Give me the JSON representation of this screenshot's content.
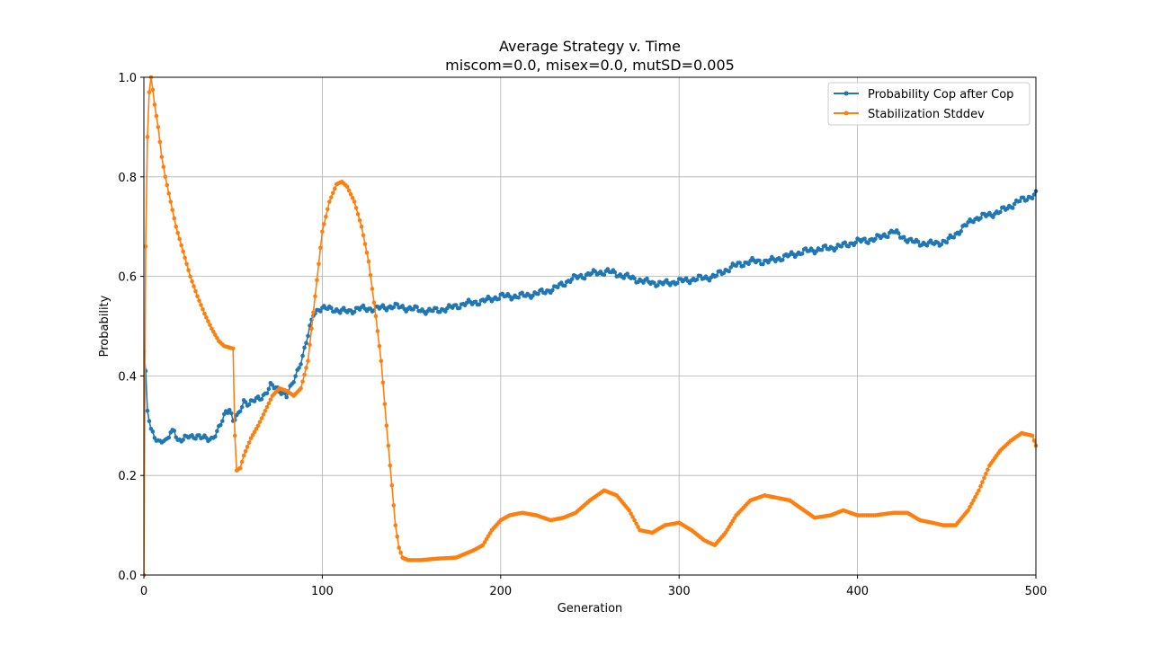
{
  "chart_data": {
    "type": "line",
    "title": "Average Strategy v. Time",
    "subtitle": "miscom=0.0, misex=0.0, mutSD=0.005",
    "xlabel": "Generation",
    "ylabel": "Probability",
    "xlim": [
      0,
      500
    ],
    "ylim": [
      0.0,
      1.0
    ],
    "xticks": [
      0,
      100,
      200,
      300,
      400,
      500
    ],
    "xtick_labels": [
      "0",
      "100",
      "200",
      "300",
      "400",
      "500"
    ],
    "yticks": [
      0.0,
      0.2,
      0.4,
      0.6,
      0.8,
      1.0
    ],
    "ytick_labels": [
      "0.0",
      "0.2",
      "0.4",
      "0.6",
      "0.8",
      "1.0"
    ],
    "grid": true,
    "legend_position": "top-right",
    "series": [
      {
        "name": "Probability Cop after Cop",
        "color": "#1f77b4",
        "marker": "circle",
        "knots": [
          [
            0,
            0.45
          ],
          [
            1,
            0.41
          ],
          [
            2,
            0.33
          ],
          [
            4,
            0.29
          ],
          [
            6,
            0.28
          ],
          [
            8,
            0.27
          ],
          [
            10,
            0.27
          ],
          [
            12,
            0.265
          ],
          [
            15,
            0.285
          ],
          [
            17,
            0.295
          ],
          [
            19,
            0.27
          ],
          [
            22,
            0.27
          ],
          [
            25,
            0.28
          ],
          [
            28,
            0.28
          ],
          [
            32,
            0.275
          ],
          [
            35,
            0.275
          ],
          [
            38,
            0.275
          ],
          [
            41,
            0.285
          ],
          [
            44,
            0.31
          ],
          [
            46,
            0.33
          ],
          [
            48,
            0.335
          ],
          [
            50,
            0.31
          ],
          [
            53,
            0.32
          ],
          [
            56,
            0.35
          ],
          [
            59,
            0.345
          ],
          [
            62,
            0.35
          ],
          [
            65,
            0.355
          ],
          [
            68,
            0.365
          ],
          [
            71,
            0.38
          ],
          [
            74,
            0.375
          ],
          [
            77,
            0.37
          ],
          [
            80,
            0.36
          ],
          [
            83,
            0.38
          ],
          [
            86,
            0.41
          ],
          [
            89,
            0.44
          ],
          [
            92,
            0.48
          ],
          [
            95,
            0.525
          ],
          [
            98,
            0.535
          ],
          [
            102,
            0.535
          ],
          [
            106,
            0.535
          ],
          [
            110,
            0.53
          ],
          [
            115,
            0.53
          ],
          [
            120,
            0.535
          ],
          [
            130,
            0.535
          ],
          [
            140,
            0.54
          ],
          [
            150,
            0.535
          ],
          [
            160,
            0.53
          ],
          [
            170,
            0.535
          ],
          [
            180,
            0.545
          ],
          [
            190,
            0.55
          ],
          [
            200,
            0.56
          ],
          [
            210,
            0.56
          ],
          [
            220,
            0.565
          ],
          [
            230,
            0.575
          ],
          [
            240,
            0.595
          ],
          [
            250,
            0.605
          ],
          [
            260,
            0.61
          ],
          [
            270,
            0.6
          ],
          [
            280,
            0.59
          ],
          [
            290,
            0.585
          ],
          [
            300,
            0.59
          ],
          [
            310,
            0.595
          ],
          [
            320,
            0.6
          ],
          [
            330,
            0.62
          ],
          [
            340,
            0.63
          ],
          [
            350,
            0.63
          ],
          [
            360,
            0.64
          ],
          [
            370,
            0.65
          ],
          [
            380,
            0.655
          ],
          [
            390,
            0.66
          ],
          [
            400,
            0.67
          ],
          [
            410,
            0.675
          ],
          [
            420,
            0.69
          ],
          [
            430,
            0.67
          ],
          [
            440,
            0.665
          ],
          [
            450,
            0.67
          ],
          [
            455,
            0.685
          ],
          [
            460,
            0.7
          ],
          [
            465,
            0.715
          ],
          [
            470,
            0.72
          ],
          [
            480,
            0.73
          ],
          [
            490,
            0.75
          ],
          [
            500,
            0.765
          ]
        ]
      },
      {
        "name": "Stabilization Stddev",
        "color": "#ff7f0e",
        "marker": "circle",
        "knots": [
          [
            0,
            0.0
          ],
          [
            1,
            0.66
          ],
          [
            2,
            0.88
          ],
          [
            3,
            0.97
          ],
          [
            4,
            1.0
          ],
          [
            5,
            0.975
          ],
          [
            6,
            0.945
          ],
          [
            8,
            0.9
          ],
          [
            10,
            0.84
          ],
          [
            12,
            0.8
          ],
          [
            15,
            0.75
          ],
          [
            18,
            0.7
          ],
          [
            22,
            0.65
          ],
          [
            26,
            0.6
          ],
          [
            30,
            0.56
          ],
          [
            34,
            0.525
          ],
          [
            38,
            0.495
          ],
          [
            42,
            0.47
          ],
          [
            45,
            0.46
          ],
          [
            50,
            0.455
          ],
          [
            51,
            0.28
          ],
          [
            52,
            0.21
          ],
          [
            54,
            0.215
          ],
          [
            56,
            0.24
          ],
          [
            60,
            0.275
          ],
          [
            64,
            0.3
          ],
          [
            68,
            0.33
          ],
          [
            72,
            0.36
          ],
          [
            76,
            0.375
          ],
          [
            80,
            0.37
          ],
          [
            84,
            0.36
          ],
          [
            88,
            0.375
          ],
          [
            92,
            0.43
          ],
          [
            96,
            0.56
          ],
          [
            100,
            0.69
          ],
          [
            104,
            0.75
          ],
          [
            108,
            0.785
          ],
          [
            111,
            0.79
          ],
          [
            114,
            0.78
          ],
          [
            118,
            0.75
          ],
          [
            122,
            0.7
          ],
          [
            126,
            0.63
          ],
          [
            130,
            0.52
          ],
          [
            133,
            0.43
          ],
          [
            136,
            0.3
          ],
          [
            139,
            0.18
          ],
          [
            141,
            0.1
          ],
          [
            143,
            0.055
          ],
          [
            145,
            0.035
          ],
          [
            148,
            0.03
          ],
          [
            155,
            0.03
          ],
          [
            165,
            0.033
          ],
          [
            175,
            0.035
          ],
          [
            185,
            0.05
          ],
          [
            190,
            0.06
          ],
          [
            195,
            0.09
          ],
          [
            200,
            0.11
          ],
          [
            205,
            0.12
          ],
          [
            212,
            0.125
          ],
          [
            220,
            0.12
          ],
          [
            228,
            0.11
          ],
          [
            235,
            0.115
          ],
          [
            242,
            0.125
          ],
          [
            250,
            0.15
          ],
          [
            258,
            0.17
          ],
          [
            265,
            0.16
          ],
          [
            272,
            0.13
          ],
          [
            278,
            0.09
          ],
          [
            285,
            0.085
          ],
          [
            292,
            0.1
          ],
          [
            300,
            0.105
          ],
          [
            307,
            0.09
          ],
          [
            314,
            0.07
          ],
          [
            320,
            0.06
          ],
          [
            326,
            0.085
          ],
          [
            332,
            0.12
          ],
          [
            340,
            0.15
          ],
          [
            348,
            0.16
          ],
          [
            355,
            0.155
          ],
          [
            362,
            0.15
          ],
          [
            370,
            0.13
          ],
          [
            376,
            0.115
          ],
          [
            385,
            0.12
          ],
          [
            392,
            0.13
          ],
          [
            400,
            0.12
          ],
          [
            410,
            0.12
          ],
          [
            420,
            0.125
          ],
          [
            428,
            0.125
          ],
          [
            435,
            0.11
          ],
          [
            442,
            0.105
          ],
          [
            448,
            0.1
          ],
          [
            455,
            0.1
          ],
          [
            462,
            0.13
          ],
          [
            468,
            0.17
          ],
          [
            474,
            0.22
          ],
          [
            480,
            0.25
          ],
          [
            486,
            0.27
          ],
          [
            492,
            0.285
          ],
          [
            498,
            0.28
          ],
          [
            500,
            0.26
          ]
        ]
      }
    ]
  }
}
